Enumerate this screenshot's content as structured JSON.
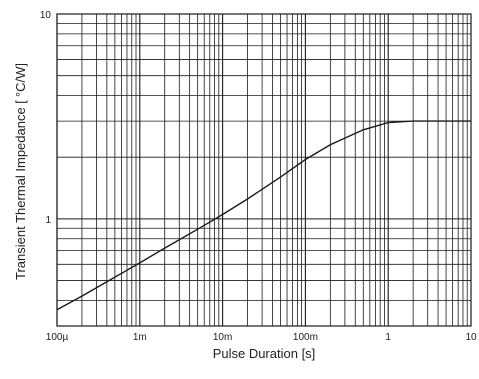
{
  "chart_data": {
    "type": "line",
    "title": "",
    "xlabel": "Pulse Duration [s]",
    "ylabel": "Transient Thermal Impedance [",
    "ylabel_unit": "°C/W]",
    "x_scale": "log",
    "y_scale": "log",
    "xlim": [
      0.0001,
      10
    ],
    "ylim": [
      0.3,
      10
    ],
    "x_tick_labels": [
      "100µ",
      "1m",
      "10m",
      "100m",
      "1",
      "10"
    ],
    "y_tick_labels": [
      "1",
      "10"
    ],
    "grid": true,
    "colors": {
      "line": "#1a1a1a",
      "grid": "#1a1a1a",
      "background": "#ffffff"
    },
    "series": [
      {
        "x": [
          0.0001,
          0.0002,
          0.0005,
          0.001,
          0.002,
          0.005,
          0.01,
          0.02,
          0.05,
          0.1,
          0.2,
          0.5,
          1,
          2,
          5,
          10
        ],
        "y": [
          0.36,
          0.42,
          0.52,
          0.61,
          0.72,
          0.89,
          1.05,
          1.25,
          1.6,
          1.95,
          2.3,
          2.72,
          2.95,
          3.0,
          3.0,
          3.0
        ]
      }
    ]
  }
}
